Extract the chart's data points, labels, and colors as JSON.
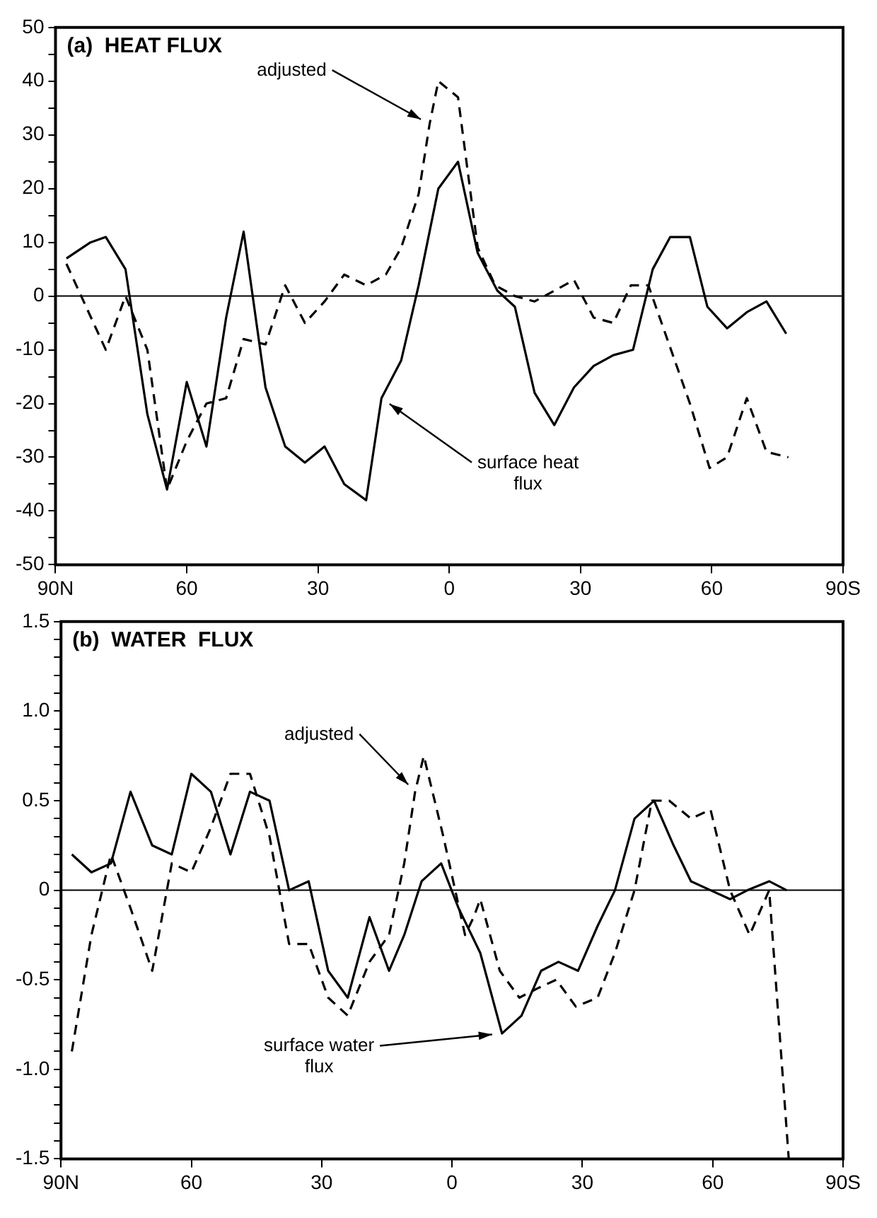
{
  "chart_data": [
    {
      "type": "line",
      "title": "(a)  HEAT FLUX",
      "xlim": [
        90,
        -90
      ],
      "xticks": [
        {
          "value": 90,
          "label": "90N"
        },
        60,
        30,
        0,
        {
          "value": -30,
          "label": "30"
        },
        {
          "value": -60,
          "label": "60"
        },
        {
          "value": -90,
          "label": "90S"
        }
      ],
      "ylim": [
        -50,
        50
      ],
      "yticks": [
        -50,
        {
          "value": -45,
          "label": null
        },
        -40,
        {
          "value": -35,
          "label": null
        },
        -30,
        {
          "value": -25,
          "label": null
        },
        -20,
        {
          "value": -15,
          "label": null
        },
        -10,
        {
          "value": -5,
          "label": null
        },
        0,
        {
          "value": 5,
          "label": null
        },
        10,
        {
          "value": 15,
          "label": null
        },
        20,
        {
          "value": 25,
          "label": null
        },
        30,
        {
          "value": 35,
          "label": null
        },
        40,
        {
          "value": 45,
          "label": null
        },
        50
      ],
      "grid": false,
      "legend": false,
      "marker": "none",
      "ref_lines": [
        {
          "axis": "y",
          "value": 0,
          "color": "#000000"
        }
      ],
      "series": [
        {
          "name": "surface heat flux",
          "color": "#000000",
          "line_style": "solid",
          "x": [
            87.5,
            82,
            78.5,
            74,
            69,
            64.5,
            60,
            55.5,
            51,
            47,
            42,
            37.5,
            33,
            28.5,
            24,
            19,
            15.5,
            11,
            7,
            2.5,
            -2,
            -6.5,
            -11,
            -15,
            -19.5,
            -24,
            -28.5,
            -33,
            -37.5,
            -42,
            -46.5,
            -50.5,
            -55,
            -59,
            -63.5,
            -68,
            -72.5,
            -77
          ],
          "values": [
            7,
            10,
            11,
            5,
            -22,
            -36,
            -16,
            -28,
            -4,
            12,
            -17,
            -28,
            -31,
            -28,
            -35,
            -38,
            -19,
            -12,
            2,
            20,
            25,
            8,
            1,
            -2,
            -18,
            -24,
            -17,
            -13,
            -11,
            -10,
            5,
            11,
            11,
            -2,
            -6,
            -3,
            -1,
            -7
          ]
        },
        {
          "name": "adjusted",
          "color": "#000000",
          "line_style": "dashed",
          "x": [
            87.5,
            78.5,
            74,
            69,
            64.5,
            60,
            55.5,
            51,
            47,
            42,
            37.5,
            33,
            28.5,
            24,
            19,
            14.5,
            11,
            7,
            4.5,
            2.5,
            -2,
            -6.5,
            -10.5,
            -15,
            -19.5,
            -24,
            -28.5,
            -33,
            -37.5,
            -41.5,
            -45.5,
            -55,
            -59.5,
            -63.5,
            -68,
            -72.5,
            -77.5
          ],
          "values": [
            6,
            -10,
            0,
            -10,
            -36,
            -27,
            -20,
            -19,
            -8,
            -9,
            2,
            -5,
            -1,
            4,
            2,
            4,
            9,
            19,
            32,
            40,
            37,
            9,
            2,
            0,
            -1,
            1,
            3,
            -4,
            -5,
            2,
            2,
            -20,
            -32,
            -30,
            -19,
            -29,
            -30
          ]
        }
      ]
    },
    {
      "type": "line",
      "title": "(b)  WATER  FLUX",
      "xlim": [
        90,
        -90
      ],
      "xticks": [
        {
          "value": 90,
          "label": "90N"
        },
        60,
        30,
        0,
        {
          "value": -30,
          "label": "30"
        },
        {
          "value": -60,
          "label": "60"
        },
        {
          "value": -90,
          "label": "90S"
        }
      ],
      "ylim": [
        -1.5,
        1.5
      ],
      "yticks": [
        -1.5,
        {
          "value": -1.4,
          "label": null
        },
        {
          "value": -1.3,
          "label": null
        },
        {
          "value": -1.2,
          "label": null
        },
        {
          "value": -1.1,
          "label": null
        },
        {
          "value": -1,
          "label": "-1.0"
        },
        {
          "value": -0.9,
          "label": null
        },
        {
          "value": -0.8,
          "label": null
        },
        {
          "value": -0.7,
          "label": null
        },
        {
          "value": -0.6,
          "label": null
        },
        -0.5,
        {
          "value": -0.4,
          "label": null
        },
        {
          "value": -0.3,
          "label": null
        },
        {
          "value": -0.2,
          "label": null
        },
        {
          "value": -0.1,
          "label": null
        },
        0,
        {
          "value": 0.1,
          "label": null
        },
        {
          "value": 0.2,
          "label": null
        },
        {
          "value": 0.3,
          "label": null
        },
        {
          "value": 0.4,
          "label": null
        },
        0.5,
        {
          "value": 0.6,
          "label": null
        },
        {
          "value": 0.7,
          "label": null
        },
        {
          "value": 0.8,
          "label": null
        },
        {
          "value": 0.9,
          "label": null
        },
        {
          "value": 1,
          "label": "1.0"
        },
        {
          "value": 1.1,
          "label": null
        },
        {
          "value": 1.2,
          "label": null
        },
        {
          "value": 1.3,
          "label": null
        },
        {
          "value": 1.4,
          "label": null
        },
        1.5
      ],
      "grid": false,
      "legend": false,
      "marker": "none",
      "ref_lines": [
        {
          "axis": "y",
          "value": 0,
          "color": "#000000"
        }
      ],
      "series": [
        {
          "name": "surface water flux",
          "color": "#000000",
          "line_style": "solid",
          "x": [
            87.5,
            83,
            78.5,
            74,
            69,
            64.5,
            60,
            55.5,
            51,
            46.5,
            42,
            37.5,
            33,
            28.5,
            24,
            19,
            14.5,
            11,
            7,
            2.5,
            -1.5,
            -6.5,
            -11.5,
            -16,
            -20.5,
            -24.5,
            -29,
            -33.5,
            -37.5,
            -42,
            -46.5,
            -51,
            -55,
            -59.5,
            -64,
            -68,
            -73,
            -77
          ],
          "values": [
            0.2,
            0.1,
            0.15,
            0.55,
            0.25,
            0.2,
            0.65,
            0.55,
            0.2,
            0.55,
            0.5,
            0,
            0.05,
            -0.45,
            -0.6,
            -0.15,
            -0.45,
            -0.25,
            0.05,
            0.15,
            -0.1,
            -0.35,
            -0.8,
            -0.7,
            -0.45,
            -0.4,
            -0.45,
            -0.2,
            0,
            0.4,
            0.5,
            0.25,
            0.05,
            0,
            -0.05,
            0,
            0.05,
            0
          ]
        },
        {
          "name": "adjusted",
          "color": "#000000",
          "line_style": "dashed",
          "x": [
            87.5,
            83,
            78.5,
            74,
            69,
            64.5,
            60,
            55.5,
            51,
            46.5,
            42,
            37.5,
            33,
            28.5,
            24,
            19,
            14.5,
            11,
            8.5,
            6.5,
            2,
            -3,
            -5,
            -6.5,
            -11,
            -15.5,
            -19.5,
            -24,
            -28.5,
            -33.5,
            -37.5,
            -42,
            -46,
            -50,
            -55,
            -59.5,
            -64,
            -68.5,
            -73,
            -77.5
          ],
          "values": [
            -0.9,
            -0.25,
            0.2,
            -0.1,
            -0.45,
            0.15,
            0.1,
            0.35,
            0.65,
            0.65,
            0.3,
            -0.3,
            -0.3,
            -0.6,
            -0.7,
            -0.4,
            -0.25,
            0.15,
            0.55,
            0.75,
            0.3,
            -0.25,
            -0.15,
            -0.05,
            -0.45,
            -0.6,
            -0.55,
            -0.5,
            -0.65,
            -0.6,
            -0.35,
            0,
            0.5,
            0.5,
            0.4,
            0.45,
            0,
            -0.25,
            0,
            -1.5
          ]
        }
      ]
    }
  ]
}
